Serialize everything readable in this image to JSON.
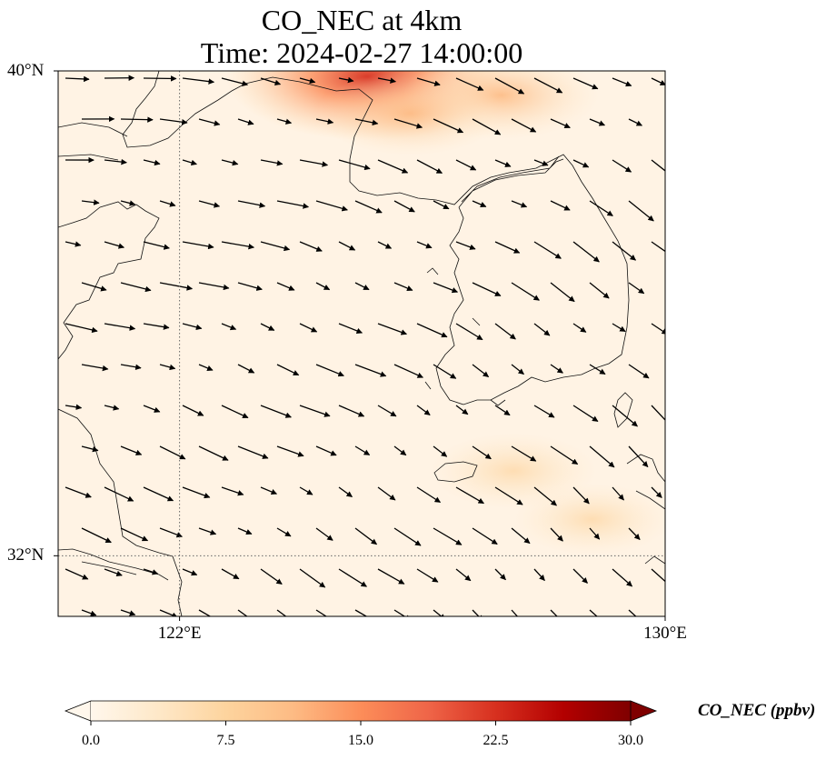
{
  "title": {
    "line1": "CO_NEC at 4km",
    "line2": "Time: 2024-02-27 14:00:00"
  },
  "map": {
    "lon_range": [
      120,
      130
    ],
    "lat_range": [
      31,
      40
    ],
    "lat_gridlines": [
      {
        "value": 40,
        "label": "40°N"
      },
      {
        "value": 32,
        "label": "32°N"
      }
    ],
    "lon_gridlines": [
      {
        "value": 122,
        "label": "122°E"
      },
      {
        "value": 130,
        "label": "130°E"
      }
    ],
    "field": "CO_NEC",
    "colormap": "OrRd",
    "elevated_regions": [
      {
        "name": "",
        "lon": 125.1,
        "lat": 39.9,
        "value": 18
      },
      {
        "name": "",
        "lon": 127.3,
        "lat": 39.6,
        "value": 9
      },
      {
        "name": "",
        "lon": 125.8,
        "lat": 39.3,
        "value": 8
      },
      {
        "name": "",
        "lon": 127.5,
        "lat": 33.4,
        "value": 6
      },
      {
        "name": "",
        "lon": 128.8,
        "lat": 32.6,
        "value": 5
      }
    ]
  },
  "colorbar": {
    "label": "CO_NEC (ppbv)",
    "min": 0,
    "max": 30,
    "ticks": [
      "0.0",
      "7.5",
      "15.0",
      "22.5",
      "30.0"
    ],
    "extend": "both",
    "colors": [
      "#fff7ec",
      "#fee8c8",
      "#fdd49e",
      "#fdbb84",
      "#fc8d59",
      "#ef6548",
      "#d7301f",
      "#b30000",
      "#7f0000"
    ]
  }
}
